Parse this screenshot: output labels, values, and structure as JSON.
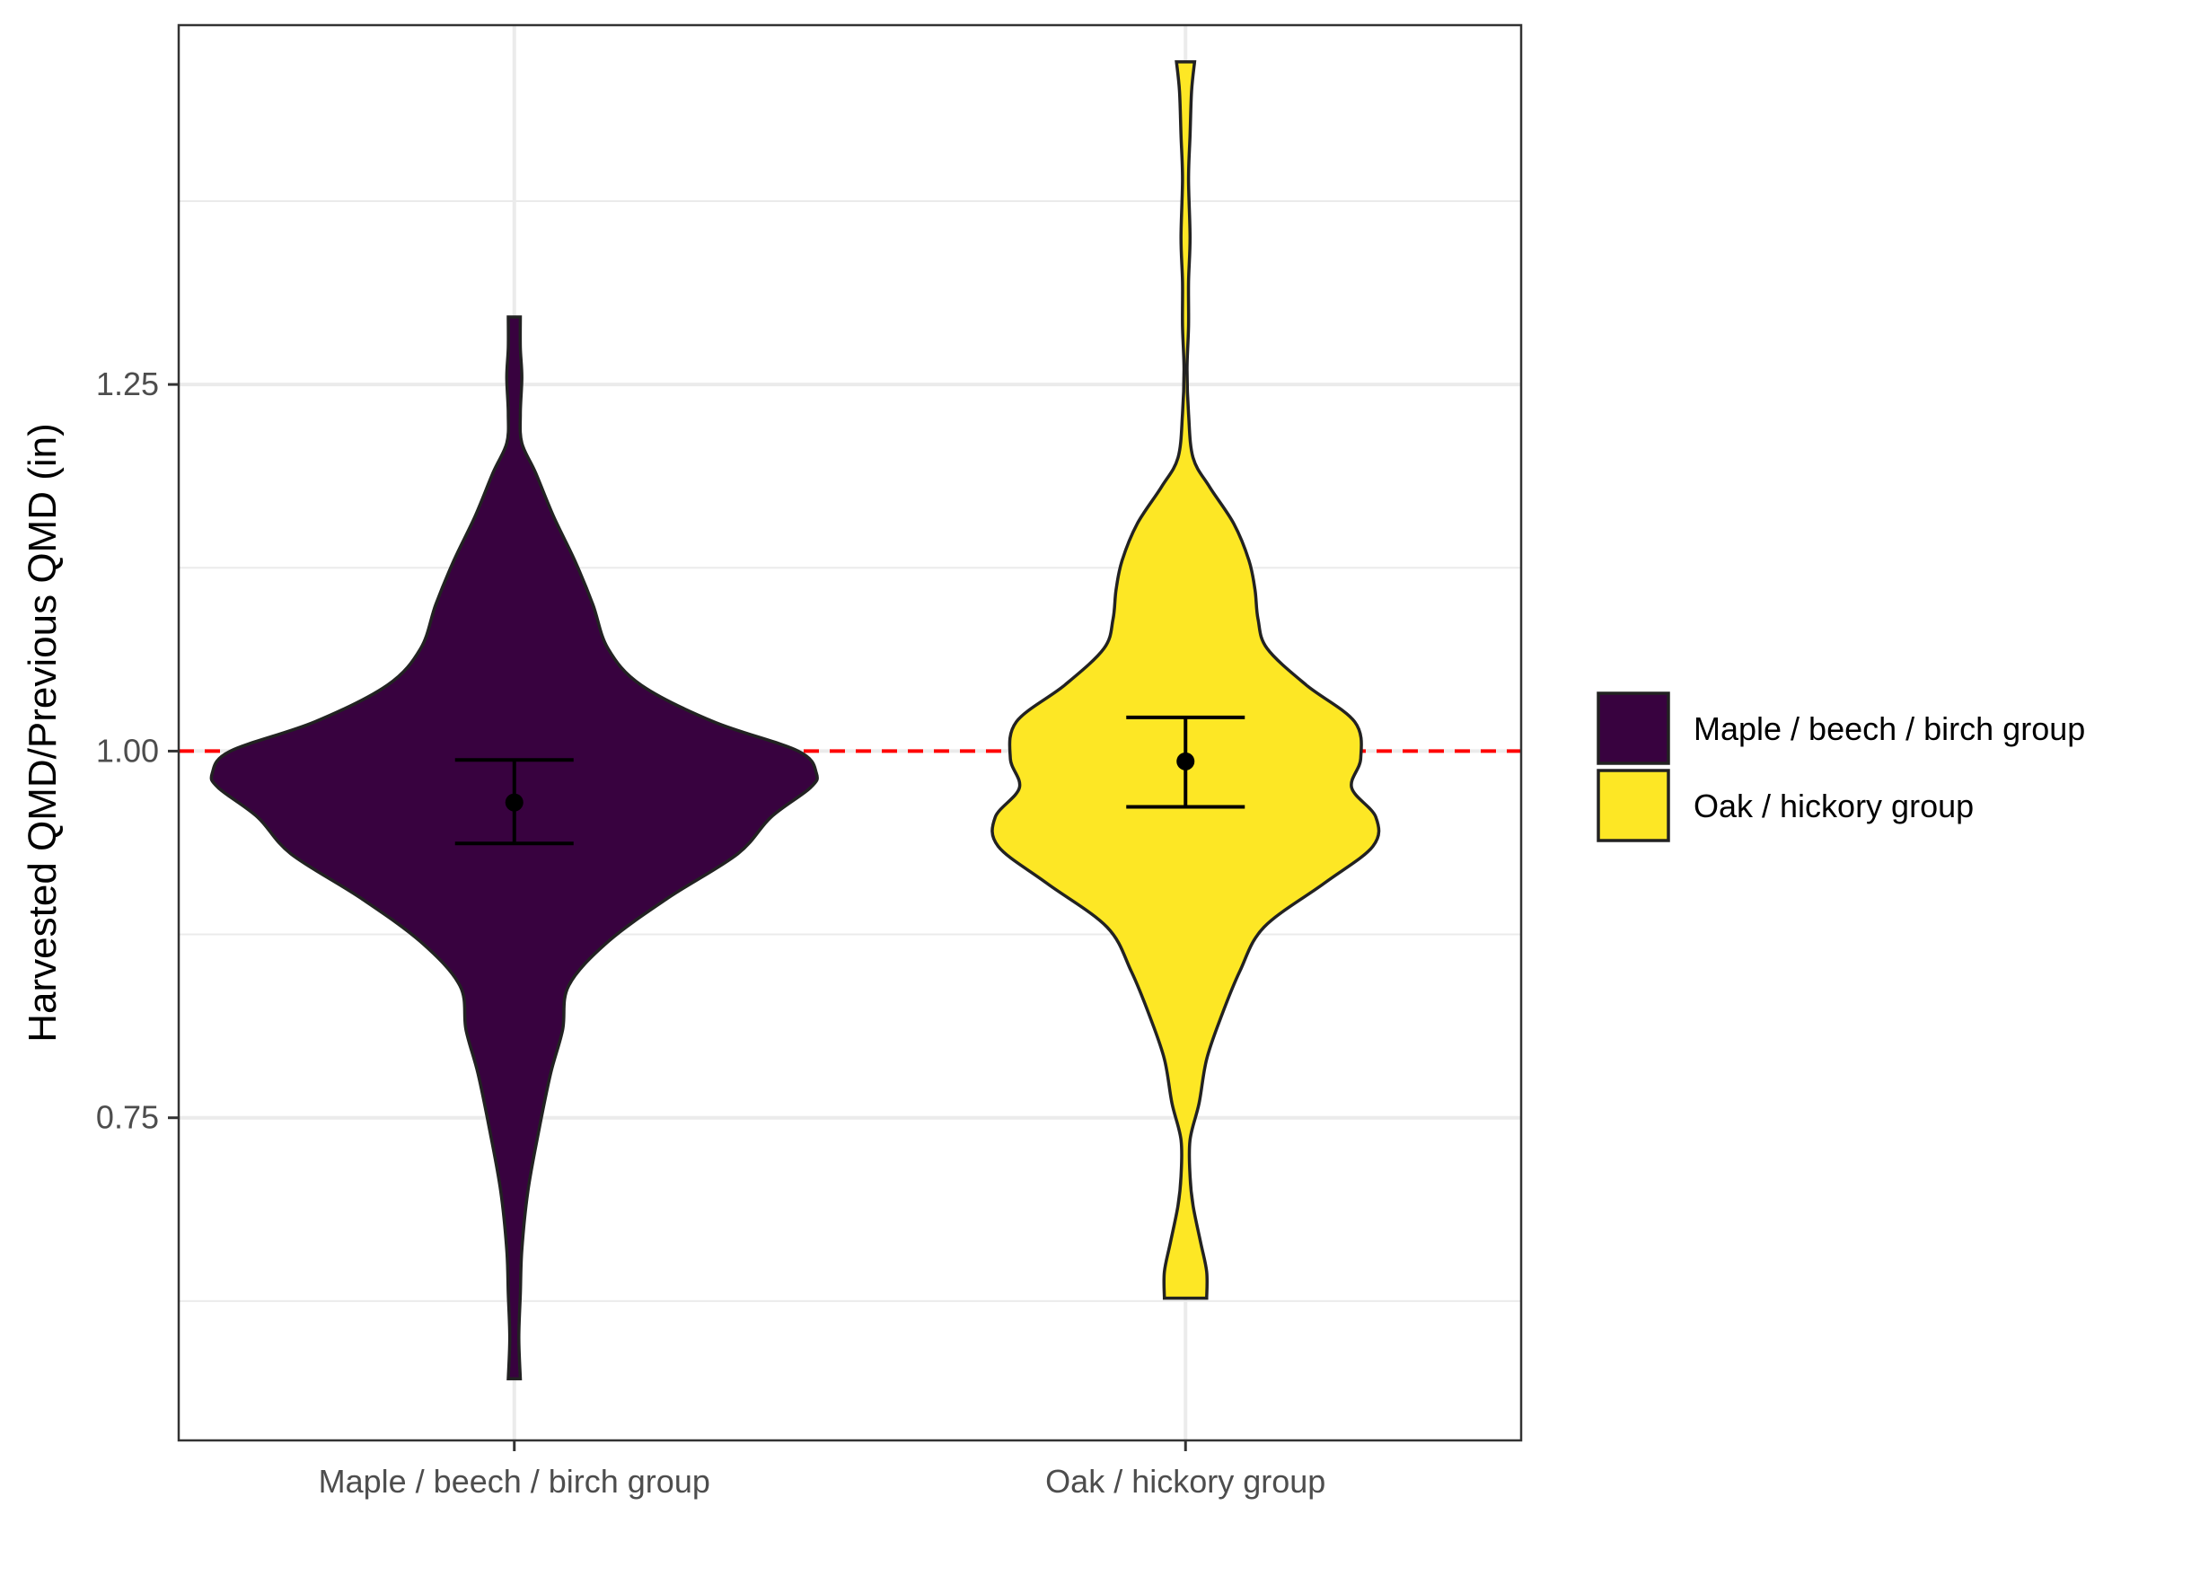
{
  "chart_data": {
    "type": "violin",
    "title": "",
    "xlabel": "",
    "ylabel": "Harvested QMD/Previous QMD (in)",
    "ylim": [
      0.53,
      1.495
    ],
    "y_ticks": [
      0.75,
      1.0,
      1.25
    ],
    "y_tick_labels": [
      "0.75",
      "1.00",
      "1.25"
    ],
    "y_minor_gridlines": [
      0.625,
      0.875,
      1.125,
      1.375
    ],
    "categories": [
      "Maple / beech / birch group",
      "Oak / hickory group"
    ],
    "reference_line": {
      "y": 1.0,
      "style": "dashed",
      "color": "#ff0000"
    },
    "grid": true,
    "legend": {
      "position": "right",
      "entries": [
        "Maple / beech / birch group",
        "Oak / hickory group"
      ]
    },
    "series": [
      {
        "name": "Maple / beech / birch group",
        "color": "#38023f",
        "mean": 0.965,
        "ci_lower": 0.937,
        "ci_upper": 0.994,
        "density_profile": [
          [
            0.572,
            0.02
          ],
          [
            0.6,
            0.015
          ],
          [
            0.63,
            0.02
          ],
          [
            0.66,
            0.025
          ],
          [
            0.7,
            0.045
          ],
          [
            0.74,
            0.08
          ],
          [
            0.78,
            0.12
          ],
          [
            0.81,
            0.16
          ],
          [
            0.84,
            0.18
          ],
          [
            0.87,
            0.31
          ],
          [
            0.9,
            0.51
          ],
          [
            0.93,
            0.74
          ],
          [
            0.955,
            0.85
          ],
          [
            0.975,
            0.98
          ],
          [
            0.985,
            1.0
          ],
          [
            1.0,
            0.94
          ],
          [
            1.02,
            0.66
          ],
          [
            1.045,
            0.42
          ],
          [
            1.07,
            0.31
          ],
          [
            1.1,
            0.26
          ],
          [
            1.13,
            0.2
          ],
          [
            1.16,
            0.13
          ],
          [
            1.19,
            0.07
          ],
          [
            1.21,
            0.025
          ],
          [
            1.23,
            0.02
          ],
          [
            1.255,
            0.025
          ],
          [
            1.275,
            0.02
          ],
          [
            1.296,
            0.02
          ]
        ]
      },
      {
        "name": "Oak / hickory group",
        "color": "#fde725",
        "mean": 0.993,
        "ci_lower": 0.962,
        "ci_upper": 1.023,
        "density_profile": [
          [
            0.627,
            0.07
          ],
          [
            0.645,
            0.07
          ],
          [
            0.665,
            0.05
          ],
          [
            0.69,
            0.025
          ],
          [
            0.71,
            0.015
          ],
          [
            0.735,
            0.015
          ],
          [
            0.76,
            0.045
          ],
          [
            0.79,
            0.07
          ],
          [
            0.82,
            0.12
          ],
          [
            0.85,
            0.18
          ],
          [
            0.88,
            0.26
          ],
          [
            0.91,
            0.46
          ],
          [
            0.935,
            0.62
          ],
          [
            0.955,
            0.63
          ],
          [
            0.975,
            0.55
          ],
          [
            0.995,
            0.58
          ],
          [
            1.02,
            0.56
          ],
          [
            1.045,
            0.4
          ],
          [
            1.07,
            0.27
          ],
          [
            1.09,
            0.24
          ],
          [
            1.11,
            0.23
          ],
          [
            1.13,
            0.21
          ],
          [
            1.155,
            0.16
          ],
          [
            1.18,
            0.08
          ],
          [
            1.2,
            0.025
          ],
          [
            1.23,
            0.01
          ],
          [
            1.26,
            0.005
          ],
          [
            1.29,
            0.01
          ],
          [
            1.32,
            0.01
          ],
          [
            1.35,
            0.015
          ],
          [
            1.39,
            0.01
          ],
          [
            1.42,
            0.015
          ],
          [
            1.45,
            0.02
          ],
          [
            1.47,
            0.03
          ]
        ]
      }
    ]
  }
}
